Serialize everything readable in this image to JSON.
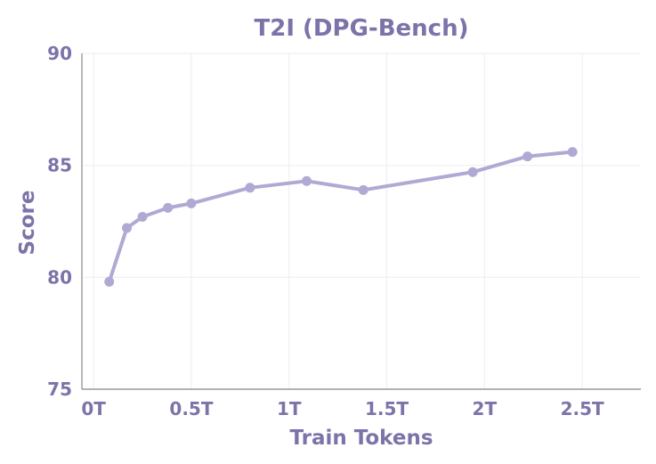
{
  "colors": {
    "text": "#7b74a9",
    "series": "#aeaad3",
    "axis": "#9a9a9a",
    "grid": "#f0f0f4"
  },
  "chart_data": {
    "type": "line",
    "title": "T2I (DPG-Bench)",
    "xlabel": "Train Tokens",
    "ylabel": "Score",
    "xlim": [
      -0.06,
      2.8
    ],
    "ylim": [
      75,
      90
    ],
    "xticks": [
      {
        "value": 0,
        "label": "0T"
      },
      {
        "value": 0.5,
        "label": "0.5T"
      },
      {
        "value": 1,
        "label": "1T"
      },
      {
        "value": 1.5,
        "label": "1.5T"
      },
      {
        "value": 2,
        "label": "2T"
      },
      {
        "value": 2.5,
        "label": "2.5T"
      }
    ],
    "yticks": [
      {
        "value": 75,
        "label": "75"
      },
      {
        "value": 80,
        "label": "80"
      },
      {
        "value": 85,
        "label": "85"
      },
      {
        "value": 90,
        "label": "90"
      }
    ],
    "grid": true,
    "legend": "none",
    "series": [
      {
        "x": [
          0.08,
          0.17,
          0.25,
          0.38,
          0.5,
          0.8,
          1.09,
          1.38,
          1.94,
          2.22,
          2.45
        ],
        "y": [
          79.8,
          82.2,
          82.7,
          83.1,
          83.3,
          84.0,
          84.3,
          83.9,
          84.7,
          85.4,
          85.6
        ]
      }
    ]
  }
}
